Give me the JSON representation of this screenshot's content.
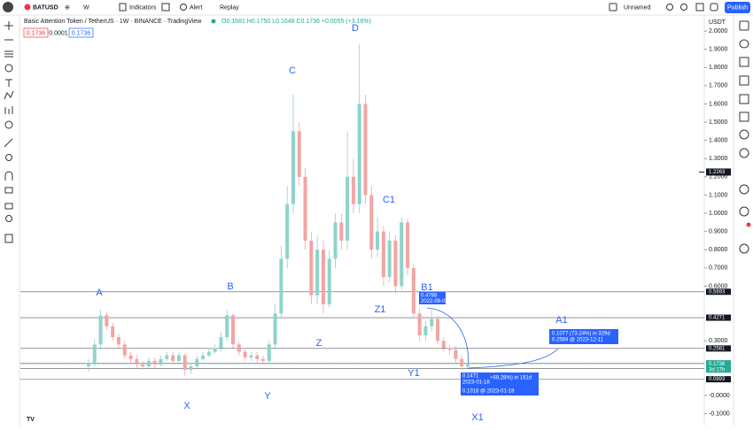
{
  "toolbar": {
    "symbol": "BATUSD",
    "interval": "W",
    "indicators": "Indicators",
    "alert": "Alert",
    "replay": "Replay",
    "layout_name": "Unnamed",
    "publish": "Publish"
  },
  "legend": {
    "title": "Basic Attention Token / TetherUS · 1W · BINANCE · TradingView",
    "ohlc": "O0.1681 H0.1750 L0.1648 C0.1736 +0.0055 (+3.16%)",
    "inputs": [
      "0.1736",
      "0.0001",
      "0.1736"
    ]
  },
  "currency": "USDT",
  "chart_data": {
    "type": "candlestick",
    "open": [
      0.16,
      0.18,
      0.28,
      0.44,
      0.38,
      0.32,
      0.28,
      0.22,
      0.2,
      0.17,
      0.16,
      0.19,
      0.17,
      0.2,
      0.22,
      0.19,
      0.22,
      0.14,
      0.16,
      0.2,
      0.22,
      0.24,
      0.26,
      0.32,
      0.44,
      0.28,
      0.24,
      0.21,
      0.22,
      0.2,
      0.19,
      0.28,
      0.45,
      0.75,
      1.05,
      1.45,
      1.2,
      0.85,
      0.55,
      0.8,
      0.5,
      0.75,
      0.95,
      0.85,
      1.2,
      1.05,
      1.6,
      1.1,
      0.8,
      0.9,
      0.65,
      0.85,
      0.6,
      0.95,
      0.7,
      0.45,
      0.33,
      0.38,
      0.42,
      0.3,
      0.26,
      0.25,
      0.2,
      0.16
    ],
    "high": [
      0.2,
      0.31,
      0.47,
      0.46,
      0.4,
      0.34,
      0.3,
      0.24,
      0.22,
      0.19,
      0.21,
      0.21,
      0.22,
      0.24,
      0.24,
      0.24,
      0.23,
      0.18,
      0.22,
      0.24,
      0.26,
      0.28,
      0.35,
      0.47,
      0.45,
      0.3,
      0.26,
      0.24,
      0.24,
      0.22,
      0.3,
      0.5,
      0.82,
      1.15,
      1.65,
      1.5,
      1.25,
      0.9,
      0.88,
      0.85,
      0.8,
      1.0,
      1.0,
      1.45,
      1.3,
      1.93,
      1.65,
      1.15,
      0.98,
      0.93,
      0.9,
      0.88,
      0.98,
      0.97,
      0.72,
      0.48,
      0.41,
      0.48,
      0.44,
      0.32,
      0.28,
      0.27,
      0.22,
      0.18
    ],
    "low": [
      0.13,
      0.16,
      0.26,
      0.36,
      0.3,
      0.26,
      0.2,
      0.18,
      0.15,
      0.14,
      0.15,
      0.15,
      0.16,
      0.19,
      0.17,
      0.17,
      0.11,
      0.12,
      0.15,
      0.19,
      0.21,
      0.23,
      0.24,
      0.3,
      0.26,
      0.22,
      0.19,
      0.19,
      0.18,
      0.17,
      0.18,
      0.26,
      0.42,
      0.7,
      1.0,
      1.15,
      0.8,
      0.5,
      0.5,
      0.45,
      0.48,
      0.7,
      0.8,
      0.8,
      1.0,
      1.0,
      1.05,
      0.75,
      0.76,
      0.6,
      0.62,
      0.56,
      0.58,
      0.66,
      0.42,
      0.3,
      0.3,
      0.35,
      0.28,
      0.24,
      0.22,
      0.18,
      0.14,
      0.15
    ],
    "close": [
      0.18,
      0.28,
      0.44,
      0.38,
      0.32,
      0.28,
      0.22,
      0.2,
      0.17,
      0.16,
      0.19,
      0.17,
      0.2,
      0.22,
      0.19,
      0.22,
      0.14,
      0.16,
      0.2,
      0.22,
      0.24,
      0.26,
      0.32,
      0.44,
      0.28,
      0.24,
      0.21,
      0.22,
      0.2,
      0.19,
      0.28,
      0.45,
      0.75,
      1.05,
      1.45,
      1.2,
      0.85,
      0.55,
      0.8,
      0.5,
      0.75,
      0.95,
      0.85,
      1.2,
      1.05,
      1.6,
      1.1,
      0.8,
      0.9,
      0.65,
      0.85,
      0.6,
      0.95,
      0.7,
      0.45,
      0.33,
      0.38,
      0.42,
      0.3,
      0.26,
      0.25,
      0.2,
      0.16,
      0.17
    ],
    "up_color": "#8fd3cb",
    "down_color": "#f2a5a3",
    "ylim": [
      -0.165,
      2.083
    ],
    "yticks": [
      {
        "value": 2.0,
        "label": "2.0000"
      },
      {
        "value": 1.9,
        "label": "1.9000"
      },
      {
        "value": 1.8,
        "label": "1.8000"
      },
      {
        "value": 1.7,
        "label": "1.7000"
      },
      {
        "value": 1.6,
        "label": "1.6000"
      },
      {
        "value": 1.5,
        "label": "1.5000"
      },
      {
        "value": 1.4,
        "label": "1.4000"
      },
      {
        "value": 1.3,
        "label": "1.3000"
      },
      {
        "value": 1.2,
        "label": "1.2000"
      },
      {
        "value": 1.1,
        "label": "1.1000"
      },
      {
        "value": 1.0,
        "label": "1.0000"
      },
      {
        "value": 0.9,
        "label": "0.9000"
      },
      {
        "value": 0.8,
        "label": "0.8000"
      },
      {
        "value": 0.7,
        "label": "0.7000"
      },
      {
        "value": 0.6,
        "label": "0.6000"
      },
      {
        "value": 0.3,
        "label": "0.3000"
      },
      {
        "value": 0,
        "label": "-0.0000"
      },
      {
        "value": -0.1,
        "label": "-0.1000"
      }
    ],
    "levels": [
      {
        "value": 0.5693,
        "label": "0.5693"
      },
      {
        "value": 0.4271,
        "label": "0.4271"
      },
      {
        "value": 0.2581,
        "label": "0.2581"
      },
      {
        "value": 0.1757,
        "label": "0.1757"
      },
      {
        "value": 0.1471,
        "label": "0.1471"
      },
      {
        "value": 0.0893,
        "label": "0.0893"
      }
    ],
    "level_color": "#555555",
    "current_price": {
      "value": 0.1736,
      "label": "0.1736"
    },
    "countdown": "3d 17h",
    "crosshair_price": {
      "value": 1.2263,
      "label": "1.2263"
    },
    "wave_labels": [
      "A",
      "B",
      "C",
      "D",
      "Z",
      "Z1",
      "C1",
      "B1",
      "A1",
      "X",
      "Y",
      "Y1",
      "X1"
    ],
    "measure_top": [
      "0.4788",
      "2022-09-08"
    ],
    "measure_low": [
      "0.1471",
      "2023-01-18",
      "+69.28%) in 161d",
      "0.1018 @ 2023-01-18"
    ],
    "projection": [
      "0.1077 (73.24%) in 329d",
      "0.2569 @ 2023-12-11"
    ]
  }
}
